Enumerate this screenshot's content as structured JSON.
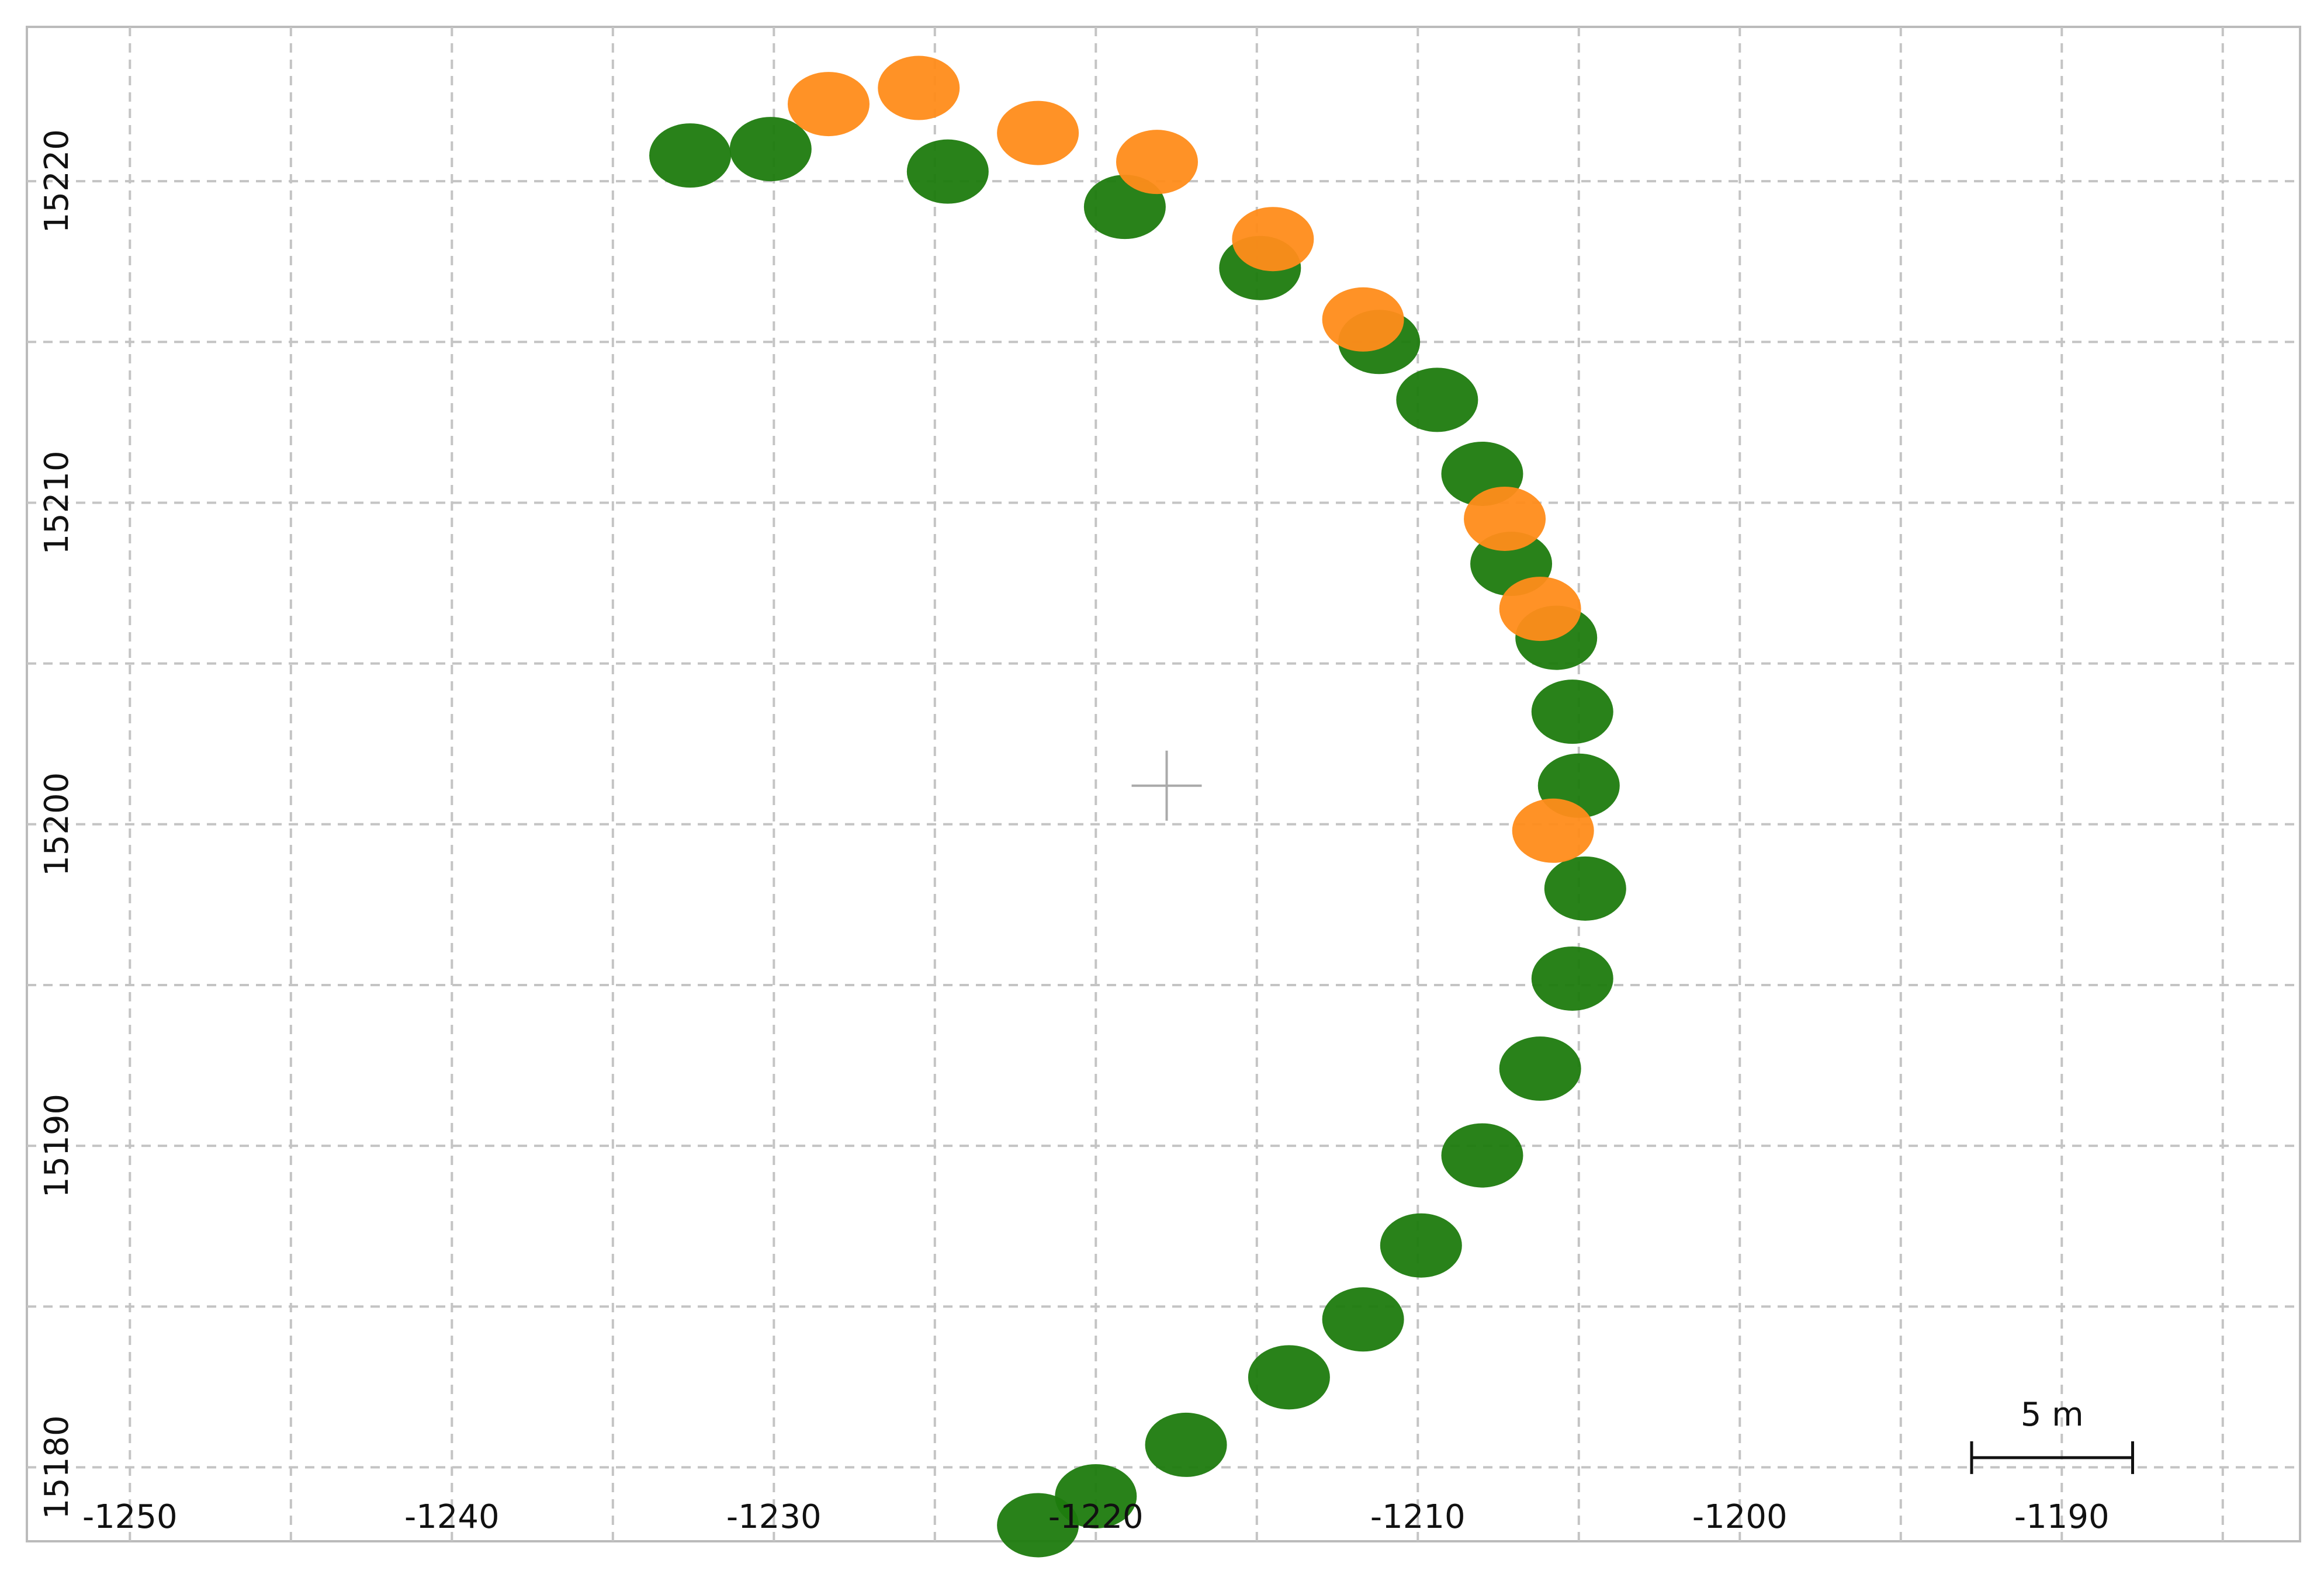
{
  "chart_data": {
    "type": "scatter",
    "xlim": [
      -1253.2,
      -1182.6
    ],
    "ylim": [
      15177.7,
      15224.8
    ],
    "xticks": [
      -1250,
      -1240,
      -1230,
      -1220,
      -1210,
      -1200,
      -1190
    ],
    "yticks": [
      15180,
      15190,
      15200,
      15210,
      15220
    ],
    "xminor": [
      -1245,
      -1235,
      -1225,
      -1215,
      -1205,
      -1195,
      -1185
    ],
    "yminor": [
      15185,
      15195,
      15205,
      15215
    ],
    "grid": true,
    "center": [
      -1217.8,
      15201.2
    ],
    "scalebar": {
      "label": "5 m",
      "length": 5,
      "position": [
        -1192.8,
        15180.3
      ]
    },
    "series": [
      {
        "color": "#1e7b0e",
        "x": [
          -1232.6,
          -1230.1,
          -1224.6,
          -1219.1,
          -1214.9,
          -1211.2,
          -1209.4,
          -1208.0,
          -1207.1,
          -1205.7,
          -1205.2,
          -1205.0,
          -1204.8,
          -1205.2,
          -1206.2,
          -1208.0,
          -1209.9,
          -1211.7,
          -1214.0,
          -1217.2,
          -1220.0,
          -1221.8
        ],
        "values": [
          15220.8,
          15221.0,
          15220.3,
          15219.2,
          15217.3,
          15215.0,
          15213.2,
          15210.9,
          15208.1,
          15205.8,
          15203.5,
          15201.2,
          15198.0,
          15195.2,
          15192.4,
          15189.7,
          15186.9,
          15184.6,
          15182.8,
          15180.7,
          15179.1,
          15178.2
        ]
      },
      {
        "color": "#ff8c1a",
        "x": [
          -1228.3,
          -1225.5,
          -1221.8,
          -1218.1,
          -1214.5,
          -1211.7,
          -1207.3,
          -1206.2,
          -1205.8
        ],
        "values": [
          15222.4,
          15222.9,
          15221.5,
          15220.6,
          15218.2,
          15215.7,
          15209.5,
          15206.7,
          15199.8
        ]
      }
    ]
  }
}
